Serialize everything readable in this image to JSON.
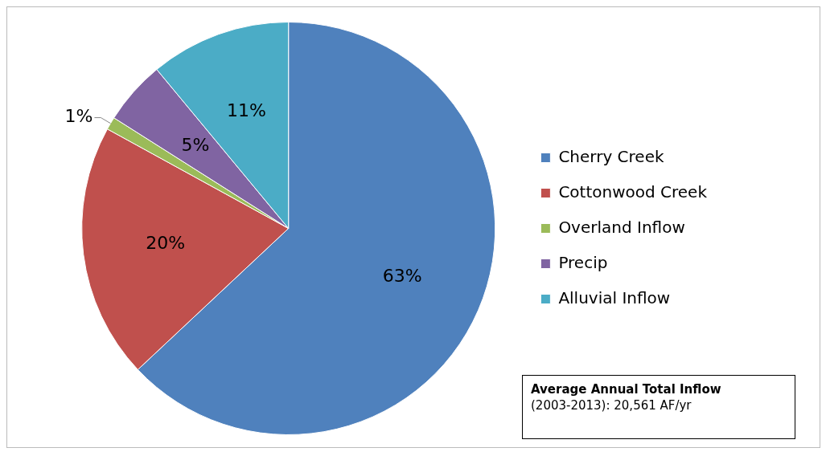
{
  "chart_data": {
    "type": "pie",
    "categories": [
      "Cherry Creek",
      "Cottonwood Creek",
      "Overland Inflow",
      "Precip",
      "Alluvial Inflow"
    ],
    "values": [
      63,
      20,
      1,
      5,
      11
    ],
    "colors": [
      "#4f81bd",
      "#c0504d",
      "#9bbb59",
      "#8064a2",
      "#4bacc6"
    ],
    "value_labels": [
      "63%",
      "20%",
      "1%",
      "5%",
      "11%"
    ],
    "legend": "right",
    "annotations": [
      "Average Annual Total Inflow",
      "(2003-2013): 20,561 AF/yr"
    ]
  }
}
